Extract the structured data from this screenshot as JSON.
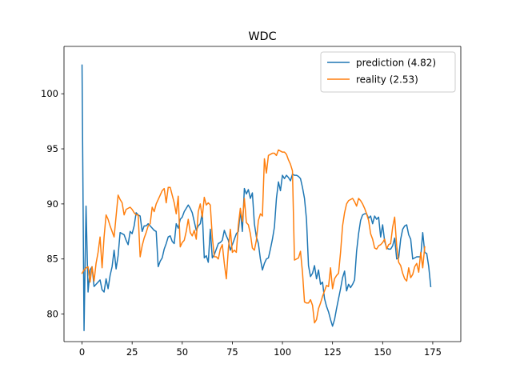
{
  "chart_data": {
    "type": "line",
    "title": "WDC",
    "xlabel": "",
    "ylabel": "",
    "xlim": [
      -9,
      189
    ],
    "ylim": [
      77.5,
      104.3
    ],
    "xticks": [
      0,
      25,
      50,
      75,
      100,
      125,
      150,
      175
    ],
    "yticks": [
      80,
      85,
      90,
      95,
      100
    ],
    "grid": false,
    "legend_position": "top-right",
    "colors": {
      "prediction": "#1f77b4",
      "reality": "#ff7f0e",
      "axis": "#000000"
    },
    "series": [
      {
        "name": "prediction (4.82)",
        "color": "#1f77b4",
        "values": [
          102.6,
          78.5,
          89.8,
          82.0,
          84.0,
          84.3,
          82.5,
          82.7,
          82.9,
          83.1,
          82.2,
          82.0,
          83.2,
          82.3,
          83.5,
          84.3,
          85.8,
          84.1,
          85.3,
          87.4,
          87.3,
          87.2,
          86.7,
          86.3,
          87.5,
          87.3,
          88.0,
          89.2,
          89.0,
          88.9,
          87.5,
          88.0,
          88.0,
          88.2,
          88.0,
          87.8,
          87.6,
          87.5,
          84.3,
          84.8,
          85.1,
          85.9,
          86.4,
          87.0,
          87.1,
          86.6,
          86.4,
          88.2,
          87.8,
          88.6,
          88.8,
          89.3,
          89.6,
          89.9,
          89.6,
          89.2,
          88.4,
          87.6,
          88.0,
          88.2,
          89.2,
          85.1,
          85.3,
          84.7,
          87.7,
          85.1,
          85.4,
          85.9,
          86.4,
          86.5,
          86.7,
          87.6,
          87.1,
          86.7,
          85.8,
          86.3,
          86.8,
          87.3,
          87.5,
          89.4,
          87.5,
          91.4,
          90.9,
          91.3,
          90.5,
          91.0,
          88.2,
          87.0,
          86.4,
          85.0,
          84.0,
          84.6,
          85.0,
          85.1,
          85.9,
          86.8,
          87.9,
          90.5,
          92.0,
          91.2,
          92.6,
          92.3,
          92.6,
          92.4,
          92.1,
          92.7,
          92.6,
          92.6,
          92.5,
          92.3,
          91.5,
          90.5,
          88.6,
          84.4,
          83.4,
          83.7,
          84.4,
          83.2,
          84.0,
          82.7,
          82.9,
          81.4,
          80.7,
          80.2,
          79.5,
          78.9,
          79.5,
          80.5,
          81.4,
          82.3,
          83.3,
          83.9,
          82.1,
          82.7,
          82.4,
          82.7,
          83.1,
          85.7,
          87.3,
          88.5,
          89.0,
          89.1,
          89.1,
          88.7,
          88.9,
          88.2,
          88.9,
          88.6,
          88.8,
          87.0,
          88.1,
          86.6,
          86.0,
          85.9,
          85.9,
          86.2,
          86.9,
          85.0,
          85.1,
          86.8,
          87.7,
          88.0,
          88.1,
          87.2,
          86.8,
          85.0,
          85.1,
          85.2,
          85.2,
          85.2,
          87.4,
          85.6,
          85.5,
          84.3,
          82.5
        ]
      },
      {
        "name": "reality (2.53)",
        "color": "#ff7f0e",
        "values": [
          83.7,
          84.0,
          84.2,
          84.3,
          82.9,
          84.3,
          83.0,
          84.6,
          85.6,
          87.0,
          84.2,
          87.0,
          89.0,
          88.6,
          88.0,
          87.5,
          87.0,
          88.9,
          90.8,
          90.4,
          90.1,
          89.0,
          89.5,
          89.6,
          89.7,
          89.5,
          89.2,
          89.0,
          89.0,
          85.2,
          86.2,
          86.9,
          87.4,
          88.0,
          88.2,
          89.7,
          89.3,
          90.0,
          90.4,
          90.8,
          91.2,
          91.4,
          90.1,
          91.5,
          91.5,
          90.8,
          90.1,
          89.1,
          90.7,
          86.1,
          86.5,
          86.7,
          87.5,
          88.6,
          87.4,
          87.1,
          87.6,
          86.8,
          89.3,
          90.0,
          88.8,
          90.6,
          89.9,
          90.1,
          89.9,
          87.0,
          85.2,
          85.2,
          85.0,
          85.9,
          86.3,
          84.6,
          83.2,
          85.9,
          87.7,
          85.6,
          85.8,
          85.6,
          88.1,
          89.6,
          88.4,
          90.5,
          88.3,
          88.1,
          87.3,
          86.0,
          85.8,
          86.7,
          88.5,
          89.1,
          88.9,
          94.1,
          92.8,
          94.4,
          94.5,
          94.6,
          94.6,
          94.4,
          94.9,
          94.8,
          94.7,
          94.7,
          94.5,
          94.0,
          93.6,
          93.0,
          84.9,
          85.0,
          85.1,
          85.7,
          83.8,
          81.1,
          81.0,
          81.0,
          81.3,
          80.8,
          79.2,
          79.5,
          80.5,
          81.0,
          81.6,
          82.1,
          82.6,
          82.5,
          84.2,
          82.3,
          83.2,
          83.5,
          83.7,
          85.6,
          88.0,
          89.2,
          90.0,
          90.3,
          90.4,
          90.5,
          90.2,
          89.8,
          90.5,
          90.3,
          90.0,
          89.6,
          89.1,
          88.5,
          87.3,
          86.8,
          86.0,
          85.9,
          86.2,
          86.3,
          86.5,
          86.8,
          85.9,
          86.3,
          86.4,
          87.9,
          88.8,
          86.2,
          84.7,
          84.4,
          83.7,
          83.2,
          83.0,
          84.2,
          83.3,
          83.6,
          84.3,
          84.6,
          83.8,
          85.6,
          84.2,
          86.1
        ]
      }
    ]
  }
}
